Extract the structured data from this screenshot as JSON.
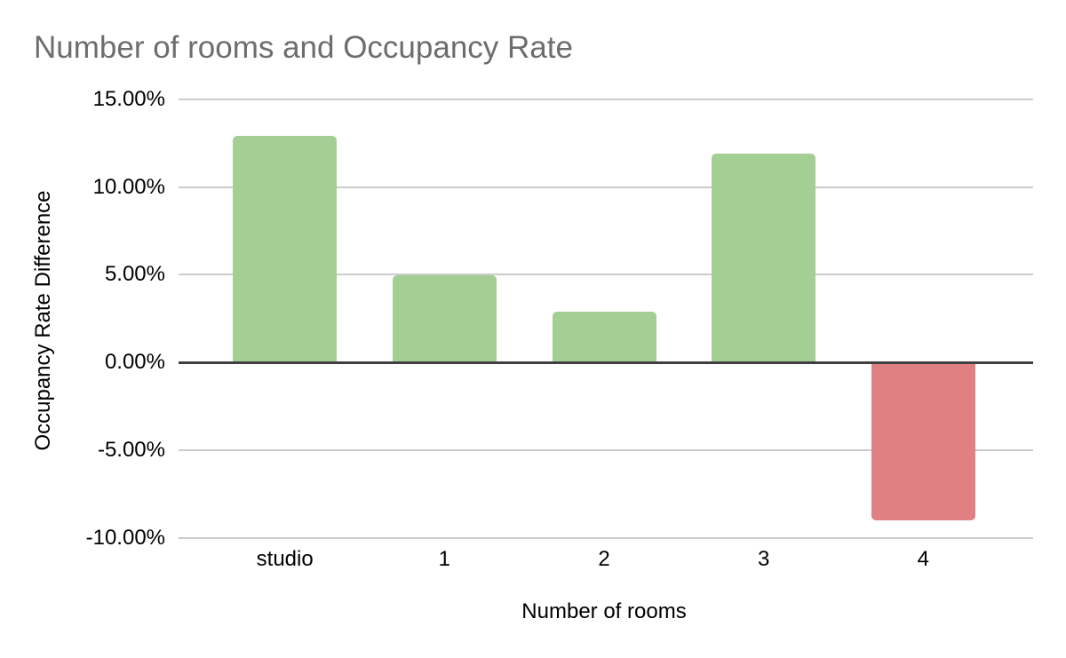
{
  "chart_data": {
    "type": "bar",
    "title": "Number of rooms and Occupancy Rate",
    "xlabel": "Number of rooms",
    "ylabel": "Occupancy Rate Difference",
    "categories": [
      "studio",
      "1",
      "2",
      "3",
      "4"
    ],
    "values": [
      12.9,
      4.95,
      2.9,
      11.9,
      -9.0
    ],
    "value_unit": "percent",
    "ylim": [
      -10,
      15
    ],
    "yticks": [
      {
        "value": 15,
        "label": "15.00%"
      },
      {
        "value": 10,
        "label": "10.00%"
      },
      {
        "value": 5,
        "label": "5.00%"
      },
      {
        "value": 0,
        "label": "0.00%"
      },
      {
        "value": -5,
        "label": "-5.00%"
      },
      {
        "value": -10,
        "label": "-10.00%"
      }
    ],
    "grid": true,
    "legend": "none",
    "colors": {
      "positive_bar": "#a3ce94",
      "negative_bar": "#e08083",
      "gridline": "#cccccc",
      "zero_line": "#404040",
      "title_text": "#6d6d6d",
      "axis_text": "#000000",
      "background": "#ffffff"
    }
  }
}
